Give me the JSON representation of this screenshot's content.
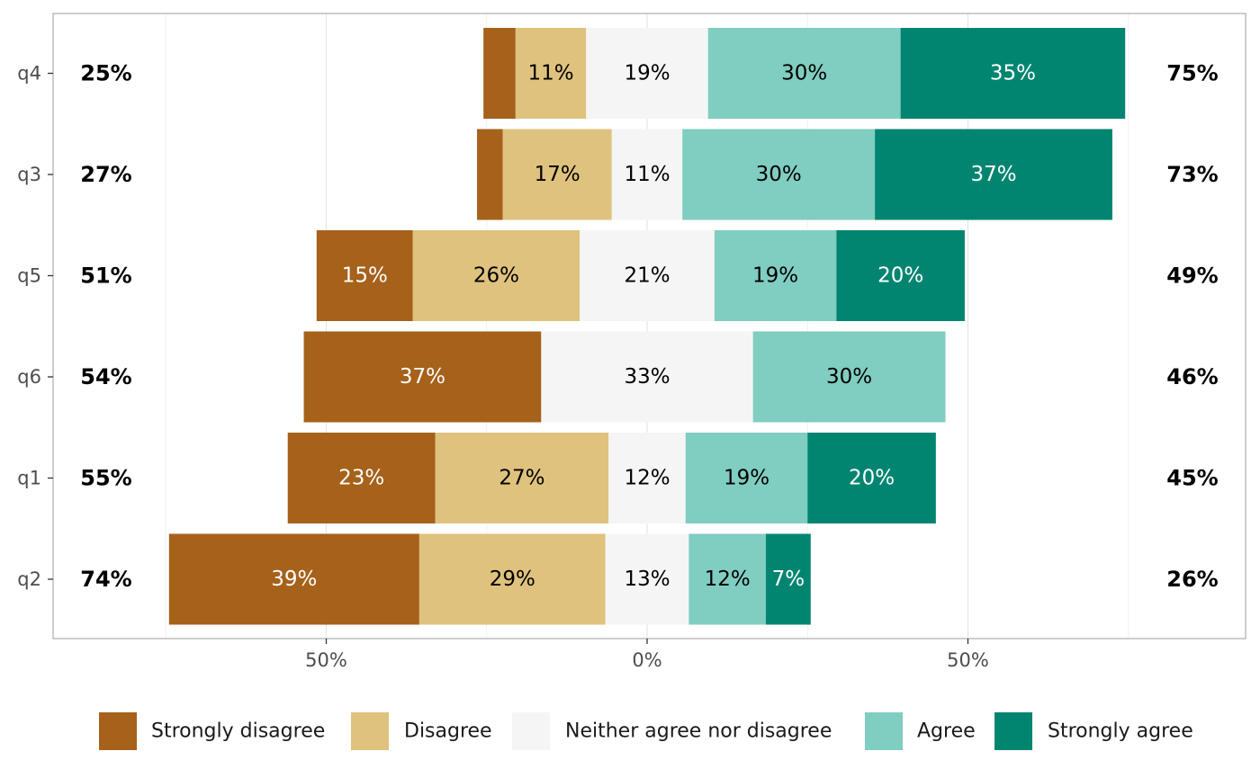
{
  "chart_data": {
    "type": "bar",
    "orientation": "horizontal",
    "stacked": "diverging",
    "title": "",
    "xlabel": "",
    "ylabel": "",
    "xlim": [
      -90,
      90
    ],
    "x_ticks": [
      {
        "value": -50,
        "label": "50%"
      },
      {
        "value": 0,
        "label": "0%"
      },
      {
        "value": 50,
        "label": "50%"
      }
    ],
    "categories": [
      "q4",
      "q3",
      "q5",
      "q6",
      "q1",
      "q2"
    ],
    "series": [
      {
        "name": "Strongly disagree",
        "color": "#A6611A",
        "text_color": "#ffffff",
        "values": [
          5,
          4,
          15,
          37,
          23,
          39
        ],
        "labels": [
          "",
          "",
          "15%",
          "37%",
          "23%",
          "39%"
        ]
      },
      {
        "name": "Disagree",
        "color": "#DFC27D",
        "text_color": "#000000",
        "values": [
          11,
          17,
          26,
          0,
          27,
          29
        ],
        "labels": [
          "11%",
          "17%",
          "26%",
          "",
          "27%",
          "29%"
        ]
      },
      {
        "name": "Neither agree nor disagree",
        "color": "#F5F5F5",
        "text_color": "#000000",
        "values": [
          19,
          11,
          21,
          33,
          12,
          13
        ],
        "labels": [
          "19%",
          "11%",
          "21%",
          "33%",
          "12%",
          "13%"
        ]
      },
      {
        "name": "Agree",
        "color": "#80CDC1",
        "text_color": "#000000",
        "values": [
          30,
          30,
          19,
          30,
          19,
          12
        ],
        "labels": [
          "30%",
          "30%",
          "19%",
          "30%",
          "19%",
          "12%"
        ]
      },
      {
        "name": "Strongly agree",
        "color": "#018571",
        "text_color": "#ffffff",
        "values": [
          35,
          37,
          20,
          0,
          20,
          7
        ],
        "labels": [
          "35%",
          "37%",
          "20%",
          "",
          "20%",
          "7%"
        ]
      }
    ],
    "left_totals": [
      "25%",
      "27%",
      "51%",
      "54%",
      "55%",
      "74%"
    ],
    "right_totals": [
      "75%",
      "73%",
      "49%",
      "46%",
      "45%",
      "26%"
    ],
    "legend_position": "bottom",
    "grid": true
  }
}
